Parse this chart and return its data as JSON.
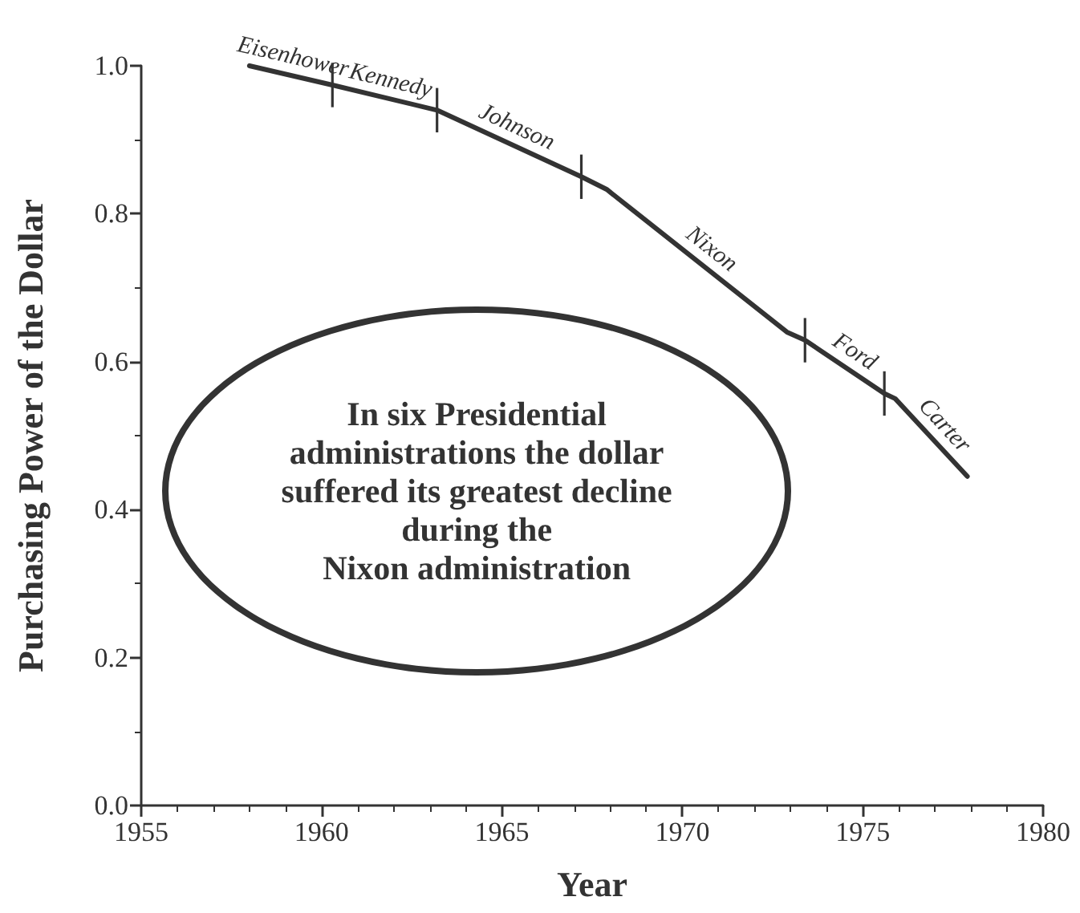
{
  "chart_data": {
    "type": "line",
    "xlabel": "Year",
    "ylabel": "Purchasing Power of the Dollar",
    "series": [
      {
        "type": "line",
        "color": "#333333",
        "marker": "none",
        "x": [
          1958,
          1960.3,
          1963.2,
          1967.2,
          1967.9,
          1972.9,
          1973.4,
          1975.6,
          1975.9,
          1977.9
        ],
        "values": [
          1.0,
          0.974,
          0.94,
          0.85,
          0.833,
          0.64,
          0.629,
          0.557,
          0.55,
          0.445
        ],
        "errors": [
          null,
          0.03,
          0.03,
          0.03,
          null,
          null,
          0.03,
          0.03,
          null,
          null
        ]
      }
    ],
    "xlim": [
      1955,
      1980
    ],
    "xticks": [
      1955,
      1960,
      1965,
      1970,
      1975,
      1980
    ],
    "ylim": [
      0,
      1.0
    ],
    "yticks": [
      {
        "value": 0,
        "label": "0.0"
      },
      {
        "value": 0.2,
        "label": "0.2"
      },
      {
        "value": 0.4,
        "label": "0.4"
      },
      {
        "value": 0.6,
        "label": "0.6"
      },
      {
        "value": 0.8,
        "label": "0.8"
      },
      {
        "value": 1.0,
        "label": "1.0"
      }
    ],
    "grid": false,
    "annotations": [
      {
        "text": "Eisenhower",
        "x": 1959.1,
        "y": 0.988
      },
      {
        "text": "Kennedy",
        "x": 1961.8,
        "y": 0.956
      },
      {
        "text": "Johnson",
        "x": 1965.2,
        "y": 0.895
      },
      {
        "text": "Nixon",
        "x": 1970.5,
        "y": 0.733
      },
      {
        "text": "Ford",
        "x": 1974.5,
        "y": 0.593
      },
      {
        "text": "Carter",
        "x": 1976.9,
        "y": 0.497
      },
      "In six Presidential\nadministrations the dollar\nsuffered its greatest decline\nduring the\nNixon administration"
    ]
  }
}
